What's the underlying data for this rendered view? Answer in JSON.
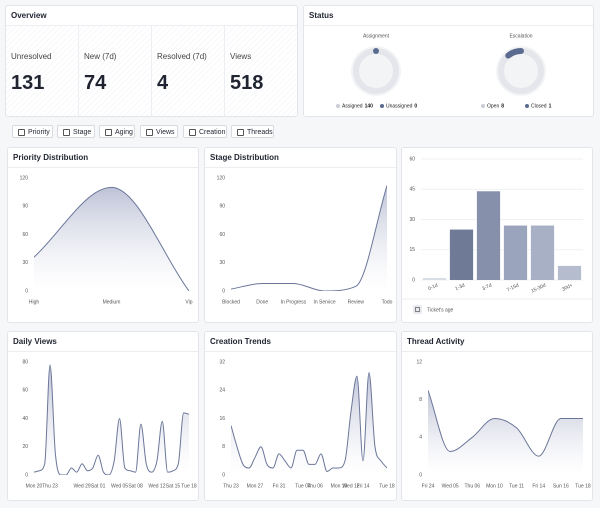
{
  "overview": {
    "title": "Overview",
    "cards": [
      {
        "label": "Unresolved",
        "value": 131
      },
      {
        "label": "New (7d)",
        "value": 74
      },
      {
        "label": "Resolved (7d)",
        "value": 4
      },
      {
        "label": "Views",
        "value": 518
      }
    ]
  },
  "status": {
    "title": "Status",
    "donuts": [
      {
        "title": "Assignment",
        "items": [
          {
            "name": "Assigned",
            "value": 140,
            "color": "#e4e6eb"
          },
          {
            "name": "Unassigned",
            "value": 0,
            "color": "#5b6b8f"
          }
        ]
      },
      {
        "title": "Escalation",
        "items": [
          {
            "name": "Open",
            "value": 8,
            "color": "#e4e6eb"
          },
          {
            "name": "Closed",
            "value": 1,
            "color": "#5b6b8f"
          }
        ]
      }
    ]
  },
  "tabs": [
    "Priority",
    "Stage",
    "Aging",
    "Views",
    "Creation",
    "Threads"
  ],
  "chart_data": [
    {
      "type": "area",
      "title": "Priority Distribution",
      "categories": [
        "High",
        "Medium",
        "Vip"
      ],
      "values": [
        36,
        110,
        0
      ],
      "color": "#6b7699",
      "ylim": [
        0,
        120
      ],
      "yticks": [
        0,
        30,
        60,
        90,
        120
      ]
    },
    {
      "type": "area",
      "title": "Stage Distribution",
      "categories": [
        "Blocked",
        "Done",
        "In Progress",
        "In Service",
        "Review",
        "Todo"
      ],
      "values": [
        2,
        8,
        8,
        0,
        5,
        112
      ],
      "color": "#6b7699",
      "ylim": [
        0,
        120
      ],
      "yticks": [
        0,
        30,
        60,
        90,
        120
      ]
    },
    {
      "type": "bar",
      "categories": [
        "0-1d",
        "1-3d",
        "3-7d",
        "7-15d",
        "15-30d",
        "30d+"
      ],
      "series": [
        {
          "name": "Ticket's age",
          "colors": [
            "#d9dde6",
            "#6f7a96",
            "#8690ab",
            "#9aa4bc",
            "#a7b0c5",
            "#b5bccd"
          ],
          "values": [
            1,
            25,
            44,
            27,
            27,
            7
          ]
        }
      ],
      "ylim": [
        0,
        60
      ],
      "yticks": [
        0,
        15,
        30,
        45,
        60
      ]
    },
    {
      "type": "area",
      "title": "Daily Views",
      "categories": [
        "Mon 20",
        null,
        null,
        "Thu 23",
        null,
        null,
        null,
        null,
        null,
        "Wed 29",
        null,
        null,
        "Sat 01",
        null,
        null,
        null,
        "Wed 05",
        null,
        null,
        "Sat 08",
        null,
        null,
        null,
        "Wed 12",
        null,
        null,
        "Sat 15",
        null,
        null,
        "Tue 18"
      ],
      "values": [
        2,
        3,
        8,
        78,
        15,
        0,
        0,
        5,
        2,
        8,
        3,
        5,
        14,
        2,
        0,
        10,
        40,
        5,
        3,
        2,
        36,
        8,
        2,
        10,
        38,
        2,
        3,
        8,
        44,
        43
      ],
      "color": "#6b7699",
      "ylim": [
        0,
        80
      ],
      "yticks": [
        0,
        20,
        40,
        60,
        80
      ]
    },
    {
      "type": "area",
      "title": "Creation Trends",
      "categories": [
        "Thu 23",
        null,
        null,
        null,
        "Mon 27",
        null,
        null,
        null,
        "Fri 31",
        null,
        null,
        null,
        "Tue 04",
        null,
        "Thu 06",
        null,
        null,
        null,
        "Mon 10",
        null,
        "Wed 12",
        null,
        "Fri 14",
        null,
        null,
        null,
        "Tue 18"
      ],
      "values": [
        14,
        8,
        3,
        2,
        5,
        8,
        3,
        2,
        6,
        4,
        2,
        7,
        7,
        3,
        3,
        6,
        1,
        2,
        2,
        4,
        18,
        28,
        4,
        29,
        8,
        4,
        2
      ],
      "color": "#6b7699",
      "ylim": [
        0,
        32
      ],
      "yticks": [
        0,
        8,
        16,
        24,
        32
      ]
    },
    {
      "type": "area",
      "title": "Thread Activity",
      "categories": [
        "Fri 24",
        "Wed 05",
        "Thu 06",
        "Mon 10",
        "Tue 11",
        "Fri 14",
        "Sun 16",
        "Tue 18"
      ],
      "values": [
        9,
        2.5,
        4,
        6,
        5,
        2,
        6,
        6
      ],
      "color": "#6b7699",
      "ylim": [
        0,
        12
      ],
      "yticks": [
        0,
        4,
        8,
        12
      ]
    }
  ]
}
